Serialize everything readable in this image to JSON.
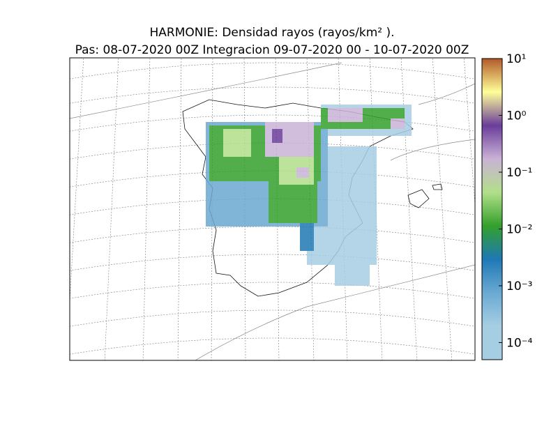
{
  "title": {
    "line1": "HARMONIE: Densidad rayos  (rayos/km² ).",
    "line2": "Pas: 08-07-2020 00Z Integracion 09-07-2020 00 - 10-07-2020 00Z"
  },
  "colorbar": {
    "scale": "log",
    "lim": [
      5e-05,
      10
    ],
    "ticks": [
      {
        "value": 0.0001,
        "label": "10⁻⁴"
      },
      {
        "value": 0.001,
        "label": "10⁻³"
      },
      {
        "value": 0.01,
        "label": "10⁻²"
      },
      {
        "value": 0.1,
        "label": "10⁻¹"
      },
      {
        "value": 1,
        "label": "10⁰"
      },
      {
        "value": 10,
        "label": "10¹"
      }
    ],
    "colors": [
      "#a6cee3",
      "#a6cee3",
      "#6aa9d2",
      "#1f78b4",
      "#33a02c",
      "#b2df8a",
      "#cab2d6",
      "#6a3d9a",
      "#ffff99",
      "#b15928"
    ]
  }
}
